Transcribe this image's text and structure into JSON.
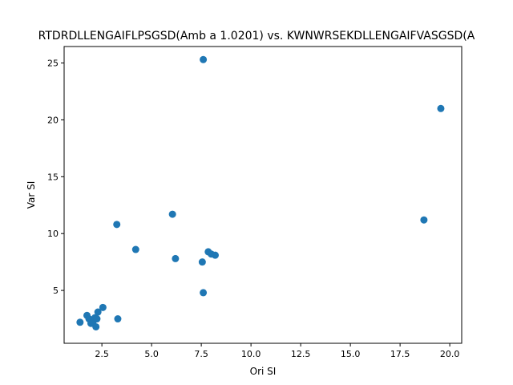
{
  "chart_data": {
    "type": "scatter",
    "title": "RTDRDLLENGAIFLPSGSD(Amb a 1.0201) vs. KWNWRSEKDLLENGAIFVASGSD(A",
    "xlabel": "Ori SI",
    "ylabel": "Var SI",
    "xlim": [
      0.6,
      20.6
    ],
    "ylim": [
      0.35,
      26.45
    ],
    "xticks": [
      "2.5",
      "5.0",
      "7.5",
      "10.0",
      "12.5",
      "15.0",
      "17.5",
      "20.0"
    ],
    "yticks": [
      "5",
      "10",
      "15",
      "20",
      "25"
    ],
    "grid": false,
    "marker_color": "#1f77b4",
    "points": [
      {
        "x": 1.4,
        "y": 2.2
      },
      {
        "x": 1.75,
        "y": 2.8
      },
      {
        "x": 1.85,
        "y": 2.5
      },
      {
        "x": 1.95,
        "y": 2.1
      },
      {
        "x": 2.05,
        "y": 2.2
      },
      {
        "x": 2.15,
        "y": 2.6
      },
      {
        "x": 2.2,
        "y": 1.8
      },
      {
        "x": 2.25,
        "y": 2.5
      },
      {
        "x": 2.3,
        "y": 3.1
      },
      {
        "x": 2.55,
        "y": 3.5
      },
      {
        "x": 3.25,
        "y": 10.8
      },
      {
        "x": 3.3,
        "y": 2.5
      },
      {
        "x": 4.2,
        "y": 8.6
      },
      {
        "x": 6.05,
        "y": 11.7
      },
      {
        "x": 6.2,
        "y": 7.8
      },
      {
        "x": 7.55,
        "y": 7.5
      },
      {
        "x": 7.6,
        "y": 4.8
      },
      {
        "x": 7.6,
        "y": 25.3
      },
      {
        "x": 7.85,
        "y": 8.4
      },
      {
        "x": 8.0,
        "y": 8.2
      },
      {
        "x": 8.2,
        "y": 8.1
      },
      {
        "x": 18.7,
        "y": 11.2
      },
      {
        "x": 19.55,
        "y": 21.0
      }
    ]
  }
}
